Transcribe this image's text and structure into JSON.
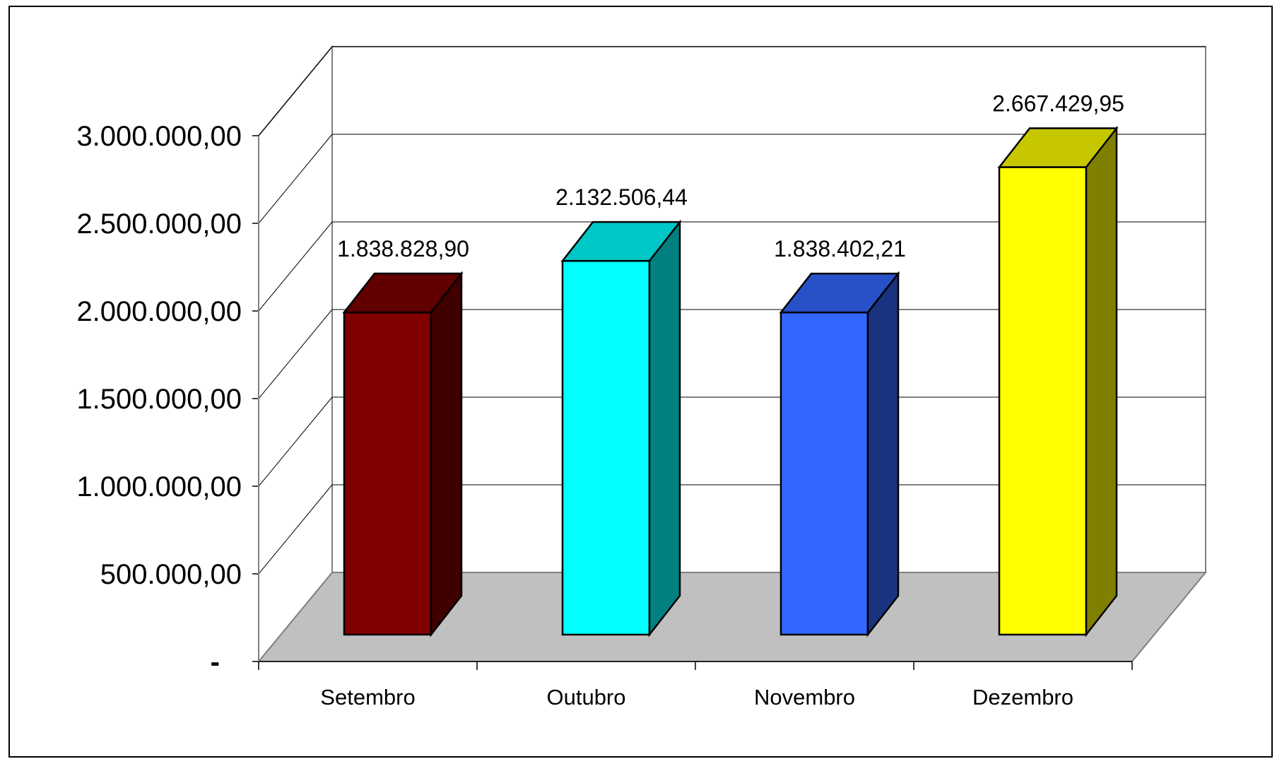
{
  "chart_data": {
    "type": "bar",
    "style": "3d-column",
    "categories": [
      "Setembro",
      "Outubro",
      "Novembro",
      "Dezembro"
    ],
    "values": [
      1838828.9,
      2132506.44,
      1838402.21,
      2667429.95
    ],
    "data_labels": [
      "1.838.828,90",
      "2.132.506,44",
      "1.838.402,21",
      "2.667.429,95"
    ],
    "colors": [
      "#800000",
      "#00ffff",
      "#3366ff",
      "#ffff00"
    ],
    "ylim": [
      0,
      3000000
    ],
    "yticks": [
      "-",
      "500.000,00",
      "1.000.000,00",
      "1.500.000,00",
      "2.000.000,00",
      "2.500.000,00",
      "3.000.000,00"
    ],
    "grid": true,
    "legend": "none",
    "title": "",
    "xlabel": "",
    "ylabel": ""
  }
}
